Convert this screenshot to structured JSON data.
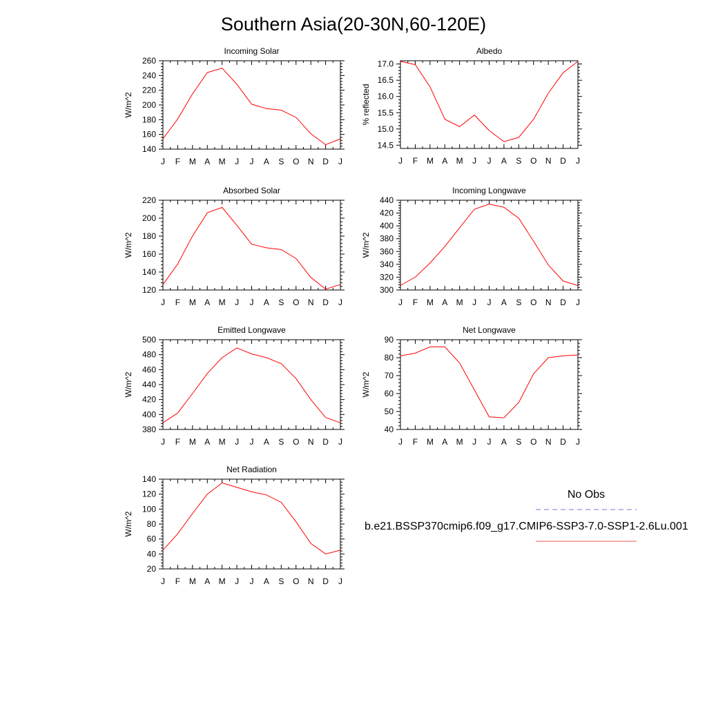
{
  "page_title": "Southern Asia(20-30N,60-120E)",
  "chart_data": [
    {
      "type": "line",
      "title": "Incoming Solar",
      "ylabel": "W/m^2",
      "categories": [
        "J",
        "F",
        "M",
        "A",
        "M",
        "J",
        "J",
        "A",
        "S",
        "O",
        "N",
        "D",
        "J"
      ],
      "ylim": [
        140,
        260
      ],
      "yticks": [
        140,
        160,
        180,
        200,
        220,
        240,
        260
      ],
      "ytick_labels": [
        "140",
        "160",
        "180",
        "200",
        "220",
        "240",
        "260"
      ],
      "series": [
        {
          "color": "#ff0000",
          "values": [
            154,
            181,
            215,
            244,
            250,
            228,
            201,
            195,
            193,
            183,
            161,
            146,
            154
          ]
        }
      ]
    },
    {
      "type": "line",
      "title": "Albedo",
      "ylabel": "% reflected",
      "categories": [
        "J",
        "F",
        "M",
        "A",
        "M",
        "J",
        "J",
        "A",
        "S",
        "O",
        "N",
        "D",
        "J"
      ],
      "ylim": [
        14.4,
        17.1
      ],
      "yticks": [
        14.5,
        15.0,
        15.5,
        16.0,
        16.5,
        17.0
      ],
      "ytick_labels": [
        "14.5",
        "15.0",
        "15.5",
        "16.0",
        "16.5",
        "17.0"
      ],
      "series": [
        {
          "color": "#ff0000",
          "values": [
            17.08,
            16.98,
            16.3,
            15.3,
            15.07,
            15.43,
            14.95,
            14.61,
            14.74,
            15.3,
            16.1,
            16.73,
            17.08
          ]
        }
      ]
    },
    {
      "type": "line",
      "title": "Absorbed Solar",
      "ylabel": "W/m^2",
      "categories": [
        "J",
        "F",
        "M",
        "A",
        "M",
        "J",
        "J",
        "A",
        "S",
        "O",
        "N",
        "D",
        "J"
      ],
      "ylim": [
        120,
        220
      ],
      "yticks": [
        120,
        140,
        160,
        180,
        200,
        220
      ],
      "ytick_labels": [
        "120",
        "140",
        "160",
        "180",
        "200",
        "220"
      ],
      "series": [
        {
          "color": "#ff0000",
          "values": [
            126,
            149,
            180,
            206,
            212,
            192,
            171,
            167,
            165,
            155,
            134,
            121,
            126
          ]
        }
      ]
    },
    {
      "type": "line",
      "title": "Incoming Longwave",
      "ylabel": "W/m^2",
      "categories": [
        "J",
        "F",
        "M",
        "A",
        "M",
        "J",
        "J",
        "A",
        "S",
        "O",
        "N",
        "D",
        "J"
      ],
      "ylim": [
        300,
        440
      ],
      "yticks": [
        300,
        320,
        340,
        360,
        380,
        400,
        420,
        440
      ],
      "ytick_labels": [
        "300",
        "320",
        "340",
        "360",
        "380",
        "400",
        "420",
        "440"
      ],
      "series": [
        {
          "color": "#ff0000",
          "values": [
            307,
            320,
            342,
            368,
            397,
            426,
            434,
            429,
            412,
            376,
            339,
            314,
            307
          ]
        }
      ]
    },
    {
      "type": "line",
      "title": "Emitted Longwave",
      "ylabel": "W/m^2",
      "categories": [
        "J",
        "F",
        "M",
        "A",
        "M",
        "J",
        "J",
        "A",
        "S",
        "O",
        "N",
        "D",
        "J"
      ],
      "ylim": [
        380,
        500
      ],
      "yticks": [
        380,
        400,
        420,
        440,
        460,
        480,
        500
      ],
      "ytick_labels": [
        "380",
        "400",
        "420",
        "440",
        "460",
        "480",
        "500"
      ],
      "series": [
        {
          "color": "#ff0000",
          "values": [
            389,
            402,
            428,
            455,
            476,
            489,
            481,
            476,
            468,
            448,
            420,
            396,
            389
          ]
        }
      ]
    },
    {
      "type": "line",
      "title": "Net Longwave",
      "ylabel": "W/m^2",
      "categories": [
        "J",
        "F",
        "M",
        "A",
        "M",
        "J",
        "J",
        "A",
        "S",
        "O",
        "N",
        "D",
        "J"
      ],
      "ylim": [
        40,
        90
      ],
      "yticks": [
        40,
        50,
        60,
        70,
        80,
        90
      ],
      "ytick_labels": [
        "40",
        "50",
        "60",
        "70",
        "80",
        "90"
      ],
      "series": [
        {
          "color": "#ff0000",
          "values": [
            81,
            82.5,
            86,
            86,
            77,
            62,
            47,
            46.5,
            55,
            71,
            80,
            81,
            81.5
          ]
        }
      ]
    },
    {
      "type": "line",
      "title": "Net Radiation",
      "ylabel": "W/m^2",
      "categories": [
        "J",
        "F",
        "M",
        "A",
        "M",
        "J",
        "J",
        "A",
        "S",
        "O",
        "N",
        "D",
        "J"
      ],
      "ylim": [
        20,
        140
      ],
      "yticks": [
        20,
        40,
        60,
        80,
        100,
        120,
        140
      ],
      "ytick_labels": [
        "20",
        "40",
        "60",
        "80",
        "100",
        "120",
        "140"
      ],
      "series": [
        {
          "color": "#ff0000",
          "values": [
            45,
            67,
            94,
            120,
            135,
            129,
            123,
            119,
            109,
            83,
            54,
            40,
            45
          ]
        }
      ]
    }
  ],
  "legend": {
    "entries": [
      {
        "label": "No Obs",
        "color": "#7777dd",
        "style": "dashed"
      },
      {
        "label": "b.e21.BSSP370cmip6.f09_g17.CMIP6-SSP3-7.0-SSP1-2.6Lu.001",
        "color": "#ee5555",
        "style": "solid"
      }
    ]
  }
}
